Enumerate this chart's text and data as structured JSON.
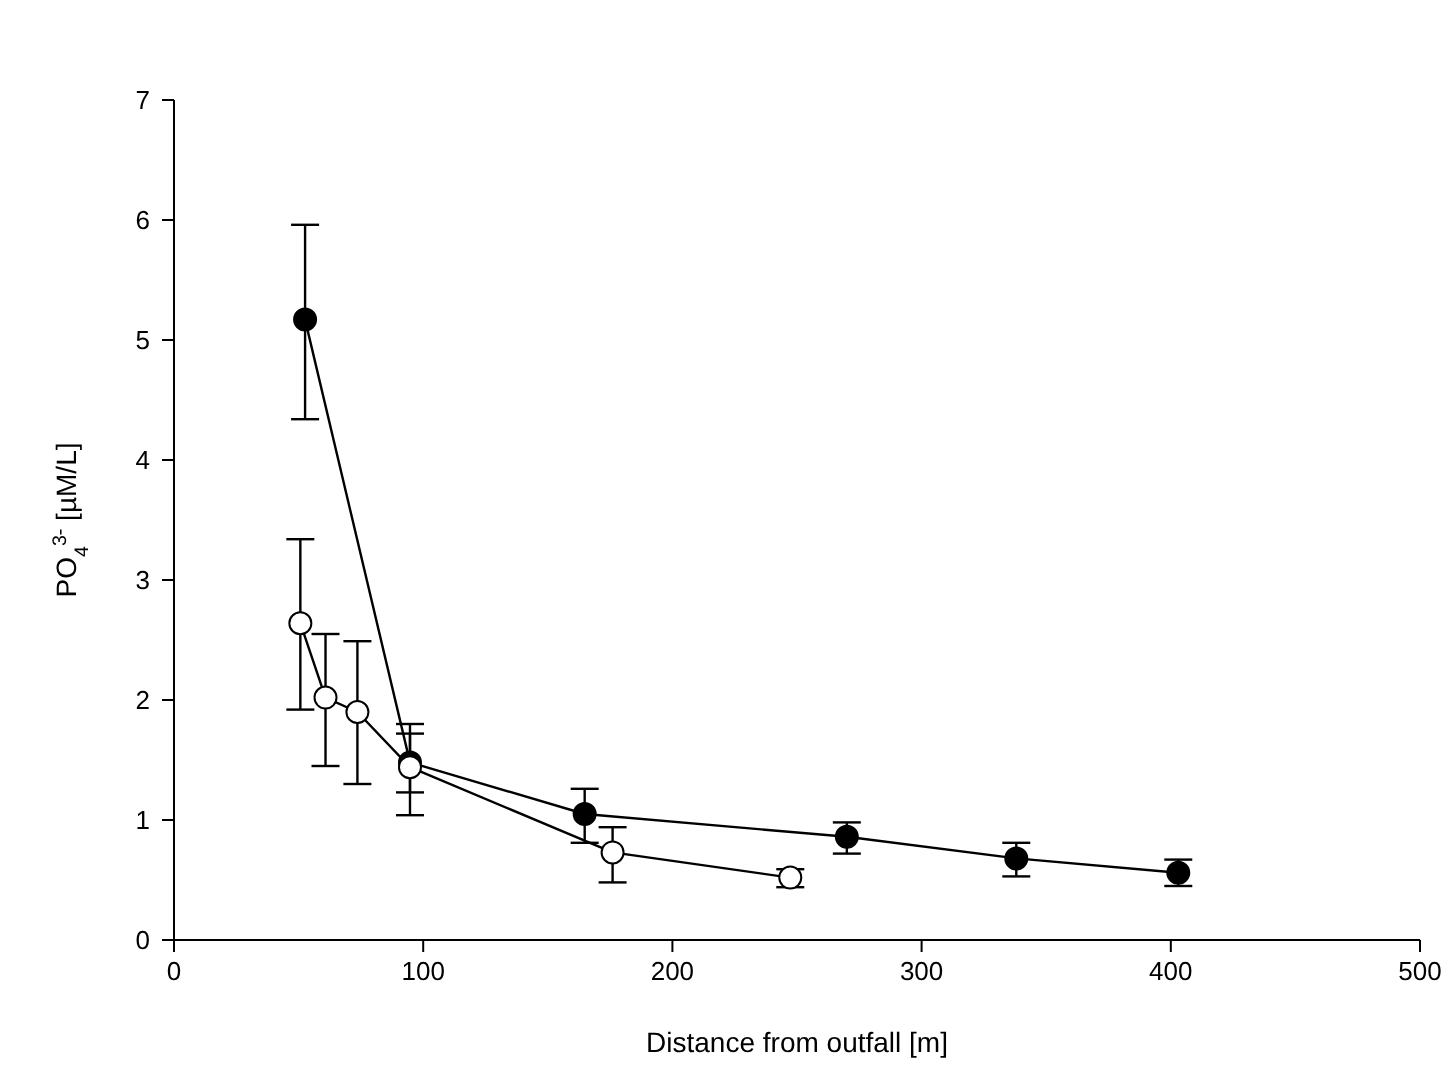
{
  "chart_data": {
    "type": "line",
    "xlabel": "Distance from outfall [m]",
    "ylabel": "PO$_{4}$$^{3-}$ [µM/L]",
    "xlim": [
      0,
      500
    ],
    "xticks": [
      0,
      100,
      200,
      300,
      400,
      500
    ],
    "ylim": [
      0,
      7
    ],
    "yticks": [
      0,
      1,
      2,
      3,
      4,
      5,
      6,
      7
    ],
    "grid": false,
    "marker": "circle",
    "line_style": "solid",
    "series": [
      {
        "color": "#000000",
        "x": [
          52.6,
          94.7,
          164.8,
          270,
          338,
          403
        ],
        "values": [
          5.17,
          1.48,
          1.05,
          0.86,
          0.68,
          0.56
        ],
        "errors": [
          [
            4.34,
            5.96
          ],
          [
            1.23,
            1.72
          ],
          [
            0.81,
            1.26
          ],
          [
            0.72,
            0.98
          ],
          [
            0.53,
            0.81
          ],
          [
            0.45,
            0.67
          ]
        ]
      },
      {
        "color": "#000000",
        "x": [
          50.7,
          60.8,
          73.6,
          94.7,
          176,
          247.3
        ],
        "values": [
          2.64,
          2.02,
          1.9,
          1.44,
          0.73,
          0.52
        ],
        "errors": [
          [
            1.92,
            3.34
          ],
          [
            1.45,
            2.55
          ],
          [
            1.3,
            2.49
          ],
          [
            1.04,
            1.8
          ],
          [
            0.48,
            0.94
          ],
          [
            0.44,
            0.59
          ]
        ]
      }
    ]
  }
}
